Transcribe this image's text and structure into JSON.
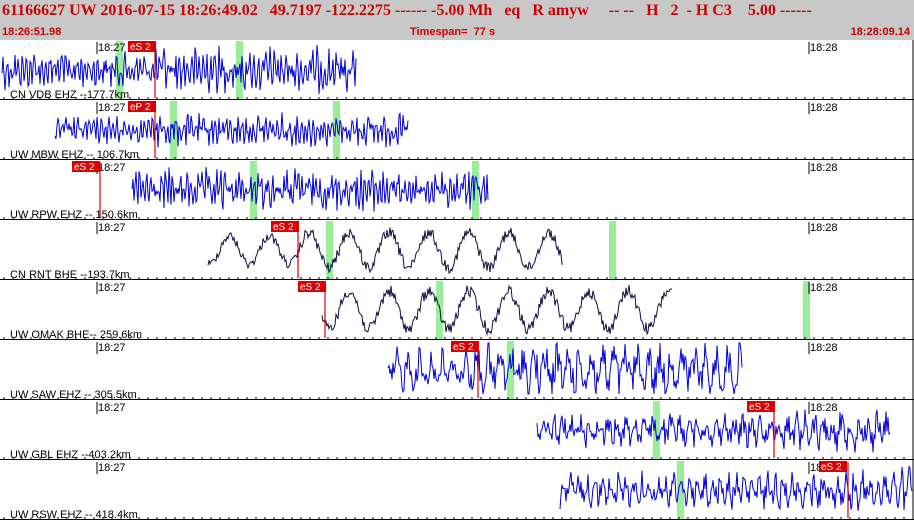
{
  "header": {
    "title": "61166627 UW 2016-07-15 18:26:49.02   49.7197 -122.2275 ------ -5.00 Mh   eq   R amyw     -- --   H   2  - H C3    5.00 ------",
    "start_time": "18:26:51.98",
    "timespan": "Timespan=  77 s",
    "end_time": "18:28:09.14"
  },
  "colors": {
    "header_bg": "#c8c8c8",
    "header_text": "#cc0000",
    "trace_blue": "#0000dd",
    "trace_dark": "#101040",
    "pick": "#dd0000",
    "window": "#99ee99"
  },
  "minute_labels": [
    "18:27",
    "18:28"
  ],
  "traces": [
    {
      "label": "CN VDB EHZ --177.7km",
      "pick": "eS 2",
      "color": "blue"
    },
    {
      "label": "UW MBW EHZ -- 106.7km",
      "pick": "eP 2",
      "color": "blue"
    },
    {
      "label": "UW RPW EHZ -- 150.6km",
      "pick": "eS 2",
      "color": "blue"
    },
    {
      "label": "CN RNT BHE --193.7km",
      "pick": "eS 2",
      "color": "dark"
    },
    {
      "label": "UW OMAK BHE-- 259.6km",
      "pick": "eS 2",
      "color": "dark"
    },
    {
      "label": "UW SAW EHZ -- 305.5km",
      "pick": "eS 2",
      "color": "blue"
    },
    {
      "label": "UW GBL EHZ --403.2km",
      "pick": "eS 2",
      "color": "blue"
    },
    {
      "label": "UW RSW EHZ -- 418.4km",
      "pick": "eS 2",
      "color": "blue"
    }
  ]
}
